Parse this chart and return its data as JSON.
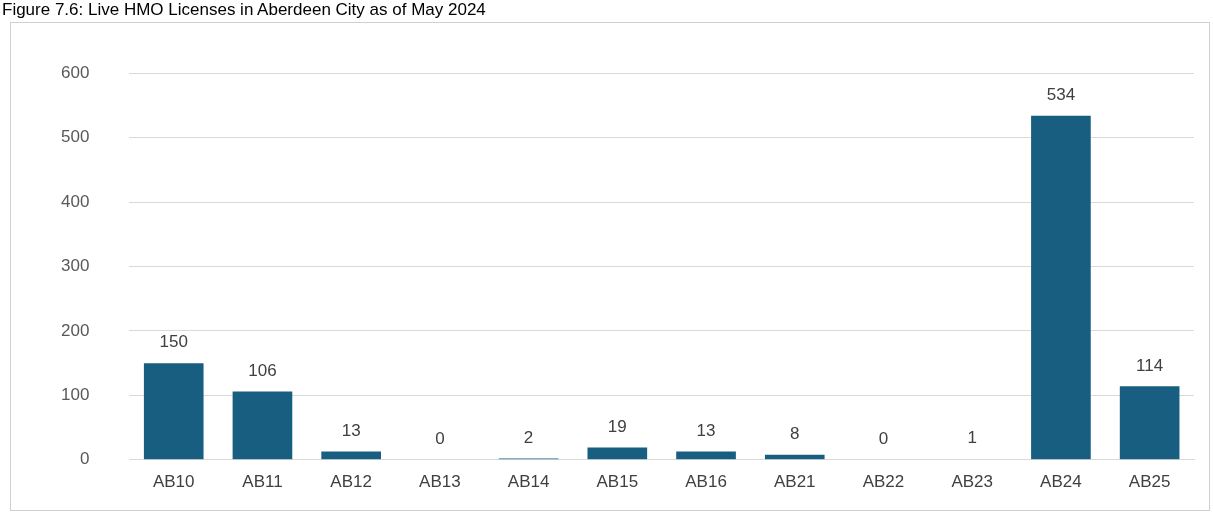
{
  "chart_data": {
    "type": "bar",
    "title": "Figure 7.6: Live HMO Licenses in Aberdeen City as of May 2024",
    "categories": [
      "AB10",
      "AB11",
      "AB12",
      "AB13",
      "AB14",
      "AB15",
      "AB16",
      "AB21",
      "AB22",
      "AB23",
      "AB24",
      "AB25"
    ],
    "values": [
      150,
      106,
      13,
      0,
      2,
      19,
      13,
      8,
      0,
      1,
      534,
      114
    ],
    "color": "#175e80",
    "ylim": [
      0,
      600
    ],
    "yticks": [
      0,
      100,
      200,
      300,
      400,
      500,
      600
    ],
    "grid": "y",
    "data_labels": true
  }
}
